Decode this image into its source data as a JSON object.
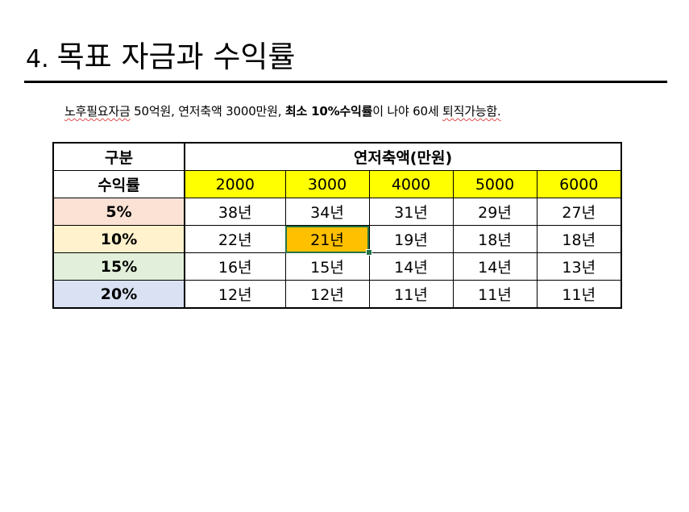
{
  "slide": {
    "number": "4.",
    "title": "목표 자금과 수익률",
    "subtitle_part1": "노후필요자금",
    "subtitle_part2": " 50억원, 연저축액 3000만원, ",
    "subtitle_bold": "최소 10%수익률",
    "subtitle_part3": "이 나야 60세 ",
    "subtitle_part4": "퇴직가능함."
  },
  "table": {
    "corner_top": "구분",
    "corner_bottom": "수익률",
    "group_header": "연저축액(만원)",
    "columns": [
      "2000",
      "3000",
      "4000",
      "5000",
      "6000"
    ],
    "rows": [
      {
        "rate": "5%",
        "values": [
          "38년",
          "34년",
          "31년",
          "29년",
          "27년"
        ]
      },
      {
        "rate": "10%",
        "values": [
          "22년",
          "21년",
          "19년",
          "18년",
          "18년"
        ]
      },
      {
        "rate": "15%",
        "values": [
          "16년",
          "15년",
          "14년",
          "14년",
          "13년"
        ]
      },
      {
        "rate": "20%",
        "values": [
          "12년",
          "12년",
          "11년",
          "11년",
          "11년"
        ]
      }
    ],
    "highlight_color": "#ffc000",
    "header_color": "#ffff00",
    "row_colors": [
      "#fbe2d5",
      "#fff2cc",
      "#e2efda",
      "#d9e1f2"
    ]
  }
}
